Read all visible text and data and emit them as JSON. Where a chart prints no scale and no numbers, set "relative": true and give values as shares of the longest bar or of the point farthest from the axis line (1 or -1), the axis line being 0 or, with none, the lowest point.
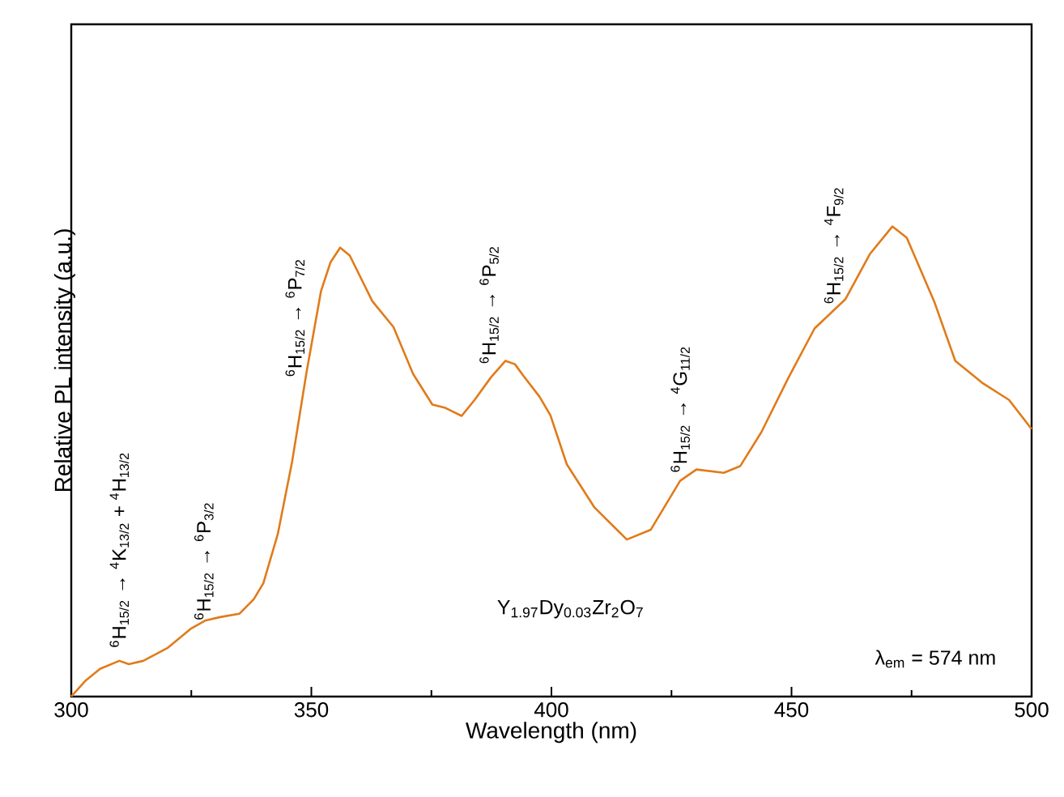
{
  "chart_data": {
    "type": "line",
    "relative": true,
    "xlabel": "Wavelength (nm)",
    "ylabel": "Relative PL intensity (a.u.)",
    "xlim": [
      300,
      500
    ],
    "xticks": [
      300,
      350,
      400,
      450,
      500
    ],
    "grid": false,
    "marker": "none",
    "line_style": "solid",
    "series": [
      {
        "color": "#e07b1a",
        "x": [
          300,
          303,
          306,
          310,
          312,
          315,
          320,
          325,
          328,
          331,
          335,
          338,
          340,
          343,
          346,
          349,
          352,
          354,
          356,
          358,
          362.7,
          367.1,
          371.2,
          375.2,
          377.9,
          381.3,
          384,
          387.4,
          390.4,
          392.4,
          394.1,
          397.5,
          399.8,
          403.2,
          408.9,
          415.7,
          420.7,
          426.8,
          430.2,
          435.9,
          439.3,
          443.7,
          449.4,
          454.8,
          461.2,
          466.3,
          471,
          474,
          479.8,
          484.1,
          489.9,
          495.3,
          500
        ],
        "values": [
          0,
          0.034,
          0.059,
          0.076,
          0.069,
          0.076,
          0.103,
          0.145,
          0.162,
          0.169,
          0.176,
          0.207,
          0.241,
          0.345,
          0.5,
          0.69,
          0.862,
          0.924,
          0.955,
          0.938,
          0.841,
          0.786,
          0.686,
          0.621,
          0.614,
          0.597,
          0.631,
          0.679,
          0.714,
          0.707,
          0.683,
          0.638,
          0.598,
          0.494,
          0.403,
          0.334,
          0.355,
          0.459,
          0.483,
          0.476,
          0.49,
          0.562,
          0.679,
          0.783,
          0.845,
          0.941,
          1,
          0.976,
          0.838,
          0.714,
          0.666,
          0.631,
          0.569
        ]
      }
    ],
    "annotations": [
      "$^{6}$H$_{15/2}$ → $^{4}$K$_{13/2}$ + $^{4}$H$_{13/2}$",
      {
        "text": "$^{6}$H$_{15/2}$ → $^{6}$P$_{3/2}$",
        "x": 331,
        "y": 0.169
      },
      {
        "text": "$^{6}$H$_{15/2}$ → $^{6}$P$_{7/2}$",
        "x": 349,
        "y": 0.69
      },
      {
        "text": "$^{6}$H$_{15/2}$ → $^{6}$P$_{5/2}$",
        "x": 390.4,
        "y": 0.714
      },
      {
        "text": "$^{6}$H$_{15/2}$ → $^{4}$G$_{11/2}$",
        "x": 430.2,
        "y": 0.483
      },
      {
        "text": "$^{6}$H$_{15/2}$ → $^{4}$F$_{9/2}$",
        "x": 461.2,
        "y": 0.845
      },
      "Y$_{1.97}$Dy$_{0.03}$Zr$_{2}$O$_{7}$",
      "λ$_{em}$ = 574 nm"
    ]
  }
}
